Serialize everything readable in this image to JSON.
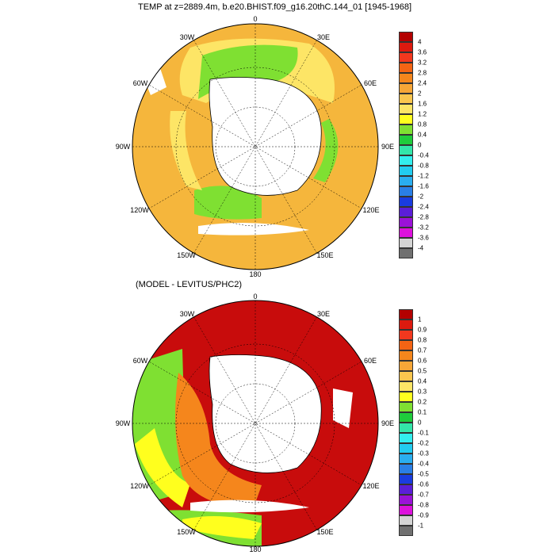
{
  "panels": [
    {
      "title": "TEMP at z=2889.4m, b.e20.BHIST.f09_g16.20thC.144_01 [1945-1968]",
      "lon_labels": [
        "0",
        "30E",
        "60E",
        "90E",
        "120E",
        "150E",
        "180",
        "150W",
        "120W",
        "90W",
        "60W",
        "30W"
      ],
      "colorbar": {
        "tick_labels": [
          "4",
          "3.6",
          "3.2",
          "2.8",
          "2.4",
          "2",
          "1.6",
          "1.2",
          "0.8",
          "0.4",
          "0",
          "-0.4",
          "-0.8",
          "-1.2",
          "-1.6",
          "-2",
          "-2.4",
          "-2.8",
          "-3.2",
          "-3.6",
          "-4"
        ],
        "colors": [
          "#b30000",
          "#dd1a0f",
          "#f2381e",
          "#f46414",
          "#f5861c",
          "#f7a637",
          "#fbc64e",
          "#fde566",
          "#ffff1e",
          "#7fe032",
          "#1fcc3c",
          "#33e6aa",
          "#33eeee",
          "#22ccf0",
          "#2aaef0",
          "#2a7fe6",
          "#1a3ce0",
          "#5b1ed8",
          "#9a12d8",
          "#dd11dd",
          "#d4d4d4",
          "#707070"
        ]
      }
    },
    {
      "title": "(MODEL - LEVITUS/PHC2)",
      "lon_labels": [
        "0",
        "30E",
        "60E",
        "90E",
        "120E",
        "150E",
        "180",
        "150W",
        "120W",
        "90W",
        "60W",
        "30W"
      ],
      "colorbar": {
        "tick_labels": [
          "1",
          "0.9",
          "0.8",
          "0.7",
          "0.6",
          "0.5",
          "0.4",
          "0.3",
          "0.2",
          "0.1",
          "0",
          "-0.1",
          "-0.2",
          "-0.3",
          "-0.4",
          "-0.5",
          "-0.6",
          "-0.7",
          "-0.8",
          "-0.9",
          "-1"
        ],
        "colors": [
          "#b30000",
          "#dd1a0f",
          "#f2381e",
          "#f46414",
          "#f5861c",
          "#f7a637",
          "#fbc64e",
          "#fde566",
          "#ffff1e",
          "#7fe032",
          "#1fcc3c",
          "#33e6aa",
          "#33eeee",
          "#22ccf0",
          "#2aaef0",
          "#2a7fe6",
          "#1a3ce0",
          "#5b1ed8",
          "#9a12d8",
          "#dd11dd",
          "#d4d4d4",
          "#707070"
        ]
      }
    }
  ]
}
